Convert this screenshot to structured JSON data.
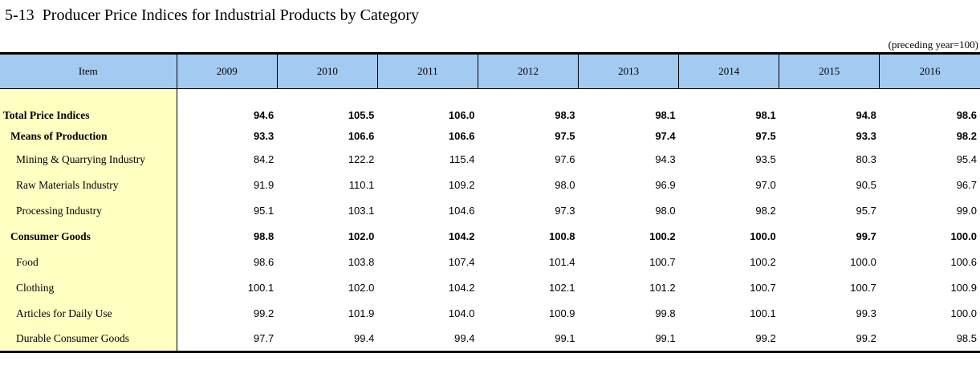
{
  "page": {
    "title": "5-13  Producer Price Indices for Industrial Products by Category",
    "unit_note": "(preceding year=100)"
  },
  "table": {
    "item_header": "Item",
    "years": [
      "2009",
      "2010",
      "2011",
      "2012",
      "2013",
      "2014",
      "2015",
      "2016"
    ],
    "rows": [
      {
        "label": "Total Price Indices",
        "bold": true,
        "indent": 0,
        "values": [
          "94.6",
          "105.5",
          "106.0",
          "98.3",
          "98.1",
          "98.1",
          "94.8",
          "98.6"
        ]
      },
      {
        "label": "Means of Production",
        "bold": true,
        "indent": 1,
        "values": [
          "93.3",
          "106.6",
          "106.6",
          "97.5",
          "97.4",
          "97.5",
          "93.3",
          "98.2"
        ]
      },
      {
        "label": "Mining & Quarrying Industry",
        "bold": false,
        "indent": 2,
        "values": [
          "84.2",
          "122.2",
          "115.4",
          "97.6",
          "94.3",
          "93.5",
          "80.3",
          "95.4"
        ]
      },
      {
        "label": "Raw Materials Industry",
        "bold": false,
        "indent": 2,
        "values": [
          "91.9",
          "110.1",
          "109.2",
          "98.0",
          "96.9",
          "97.0",
          "90.5",
          "96.7"
        ]
      },
      {
        "label": "Processing Industry",
        "bold": false,
        "indent": 2,
        "values": [
          "95.1",
          "103.1",
          "104.6",
          "97.3",
          "98.0",
          "98.2",
          "95.7",
          "99.0"
        ]
      },
      {
        "label": "Consumer Goods",
        "bold": true,
        "indent": 1,
        "values": [
          "98.8",
          "102.0",
          "104.2",
          "100.8",
          "100.2",
          "100.0",
          "99.7",
          "100.0"
        ]
      },
      {
        "label": "Food",
        "bold": false,
        "indent": 2,
        "values": [
          "98.6",
          "103.8",
          "107.4",
          "101.4",
          "100.7",
          "100.2",
          "100.0",
          "100.6"
        ]
      },
      {
        "label": "Clothing",
        "bold": false,
        "indent": 2,
        "values": [
          "100.1",
          "102.0",
          "104.2",
          "102.1",
          "101.2",
          "100.7",
          "100.7",
          "100.9"
        ]
      },
      {
        "label": "Articles for Daily Use",
        "bold": false,
        "indent": 2,
        "values": [
          "99.2",
          "101.9",
          "104.0",
          "100.9",
          "99.8",
          "100.1",
          "99.3",
          "100.0"
        ]
      },
      {
        "label": "Durable Consumer Goods",
        "bold": false,
        "indent": 2,
        "values": [
          "97.7",
          "99.4",
          "99.4",
          "99.1",
          "99.1",
          "99.2",
          "99.2",
          "98.5"
        ]
      }
    ]
  },
  "colors": {
    "header_bg": "#A3CBF2",
    "stub_bg": "#FFFFC2",
    "border": "#000000"
  }
}
